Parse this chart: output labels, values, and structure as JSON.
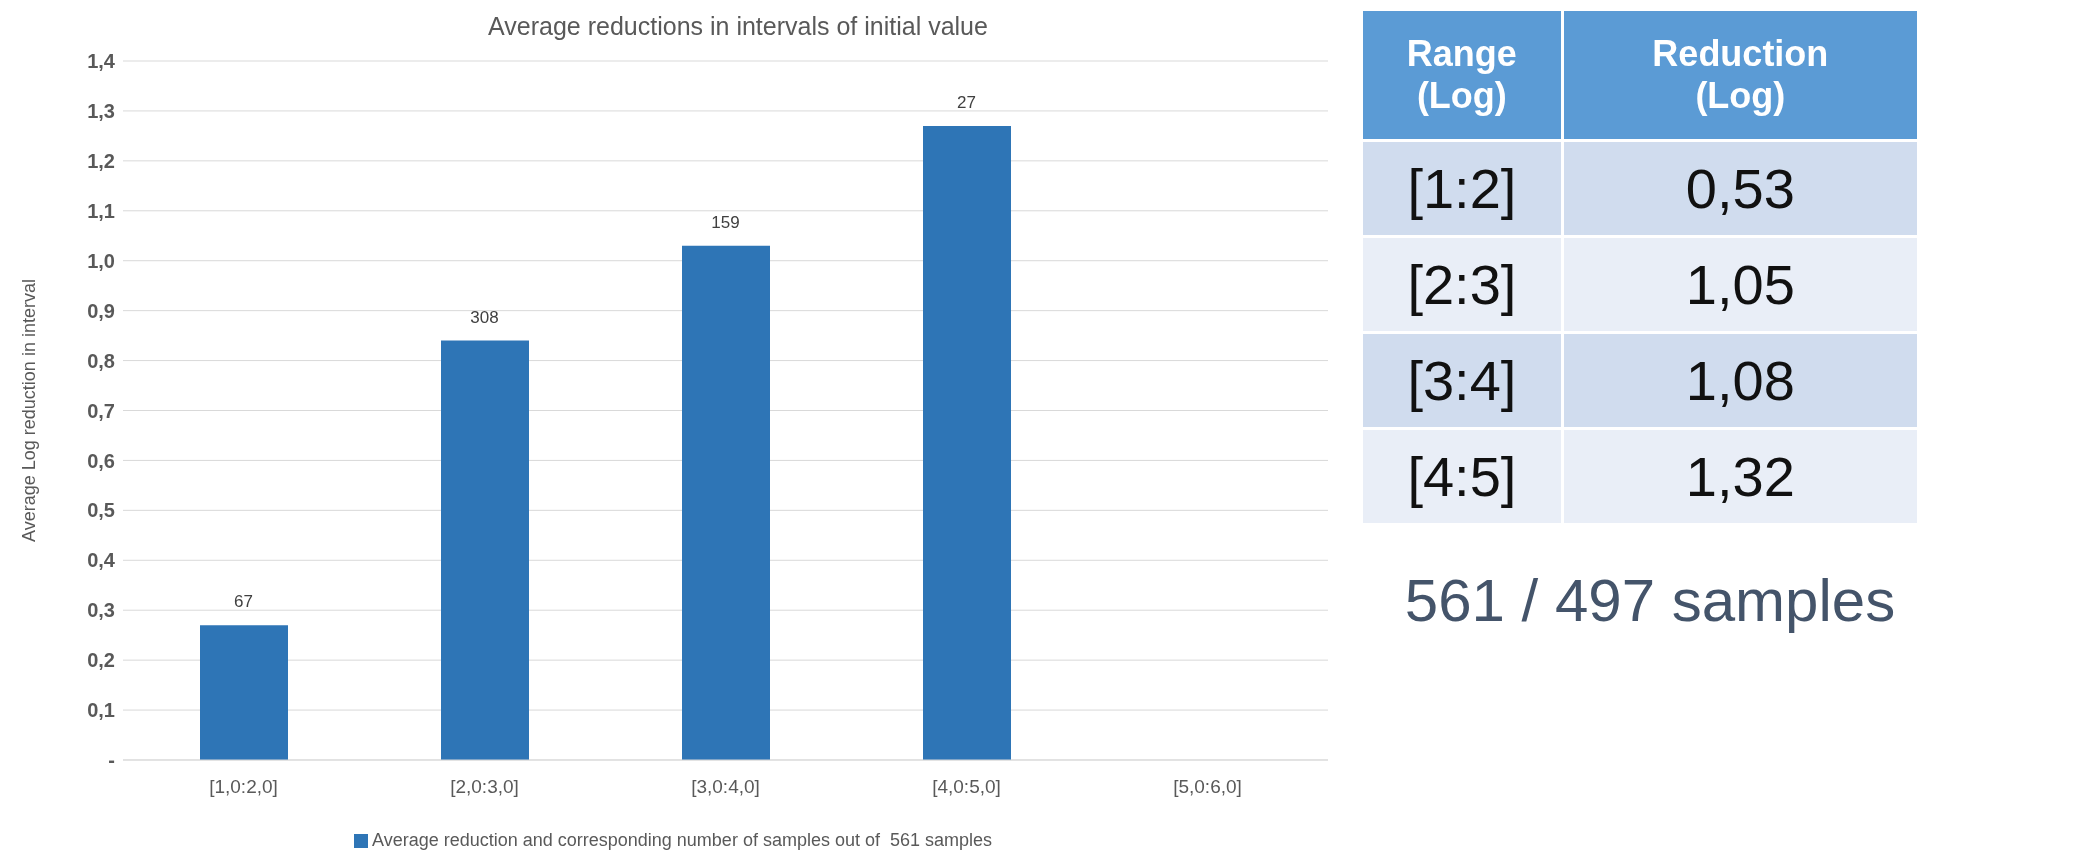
{
  "chart_data": [
    {
      "type": "bar",
      "title": "Average reductions in intervals of initial value",
      "ylabel": "Average Log reduction in interval",
      "categories": [
        "[1,0:2,0]",
        "[2,0:3,0]",
        "[3,0:4,0]",
        "[4,0:5,0]",
        "[5,0:6,0]"
      ],
      "series": [
        {
          "name": "Average reduction and corresponding number of samples out of  561 samples",
          "color": "#2e75b6",
          "values": [
            0.27,
            0.84,
            1.03,
            1.27,
            null
          ]
        }
      ],
      "annotations": [
        {
          "text": "67",
          "x": "[1,0:2,0]",
          "y": 0.27
        },
        {
          "text": "308",
          "x": "[2,0:3,0]",
          "y": 0.84
        },
        {
          "text": "159",
          "x": "[3,0:4,0]",
          "y": 1.03
        },
        {
          "text": "27",
          "x": "[4,0:5,0]",
          "y": 1.27
        }
      ],
      "ylim": [
        0,
        1.4
      ],
      "yticks": [
        {
          "value": 0,
          "label": "-"
        },
        {
          "value": 0.1,
          "label": "0,1"
        },
        {
          "value": 0.2,
          "label": "0,2"
        },
        {
          "value": 0.3,
          "label": "0,3"
        },
        {
          "value": 0.4,
          "label": "0,4"
        },
        {
          "value": 0.5,
          "label": "0,5"
        },
        {
          "value": 0.6,
          "label": "0,6"
        },
        {
          "value": 0.7,
          "label": "0,7"
        },
        {
          "value": 0.8,
          "label": "0,8"
        },
        {
          "value": 0.9,
          "label": "0,9"
        },
        {
          "value": 1.0,
          "label": "1,0"
        },
        {
          "value": 1.1,
          "label": "1,1"
        },
        {
          "value": 1.2,
          "label": "1,2"
        },
        {
          "value": 1.3,
          "label": "1,3"
        },
        {
          "value": 1.4,
          "label": "1,4"
        }
      ],
      "grid": "y",
      "legend": "bottom"
    },
    {
      "type": "other",
      "xlabel": "Range (Log)",
      "ylabel": "Reduction (Log)",
      "categories": [
        "[1:2]",
        "[2:3]",
        "[3:4]",
        "[4:5]"
      ],
      "value_labels": [
        "0,53",
        "1,05",
        "1,08",
        "1,32"
      ],
      "annotations": [
        "561 / 497 samples"
      ]
    }
  ]
}
